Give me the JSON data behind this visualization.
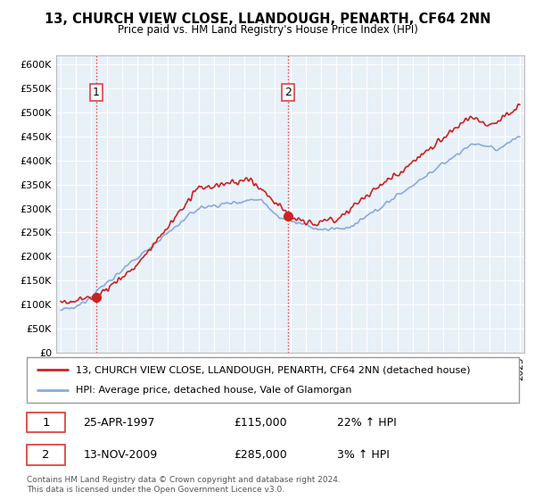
{
  "title": "13, CHURCH VIEW CLOSE, LLANDOUGH, PENARTH, CF64 2NN",
  "subtitle": "Price paid vs. HM Land Registry's House Price Index (HPI)",
  "ylabel_ticks": [
    "£0",
    "£50K",
    "£100K",
    "£150K",
    "£200K",
    "£250K",
    "£300K",
    "£350K",
    "£400K",
    "£450K",
    "£500K",
    "£550K",
    "£600K"
  ],
  "ytick_values": [
    0,
    50000,
    100000,
    150000,
    200000,
    250000,
    300000,
    350000,
    400000,
    450000,
    500000,
    550000,
    600000
  ],
  "xmin": 1994.7,
  "xmax": 2025.3,
  "ymin": 0,
  "ymax": 620000,
  "sale1_date": 1997.31,
  "sale1_price": 115000,
  "sale2_date": 2009.87,
  "sale2_price": 285000,
  "legend_line1": "13, CHURCH VIEW CLOSE, LLANDOUGH, PENARTH, CF64 2NN (detached house)",
  "legend_line2": "HPI: Average price, detached house, Vale of Glamorgan",
  "table_row1": [
    "1",
    "25-APR-1997",
    "£115,000",
    "22% ↑ HPI"
  ],
  "table_row2": [
    "2",
    "13-NOV-2009",
    "£285,000",
    "3% ↑ HPI"
  ],
  "footer": "Contains HM Land Registry data © Crown copyright and database right 2024.\nThis data is licensed under the Open Government Licence v3.0.",
  "color_red": "#cc2222",
  "color_blue": "#88aadd",
  "color_bg": "#e8f0f8",
  "color_grid": "#ffffff",
  "color_dashed": "#dd4444",
  "color_border": "#aaaaaa"
}
